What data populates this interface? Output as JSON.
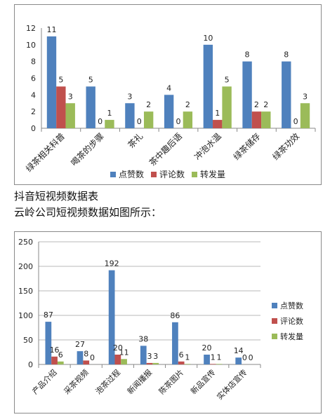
{
  "captions": {
    "line1": "抖音短视频数据表",
    "line2": "云岭公司短视频数据如图所示："
  },
  "colors": {
    "series1": "#4f81bd",
    "series2": "#c0504d",
    "series3": "#9bbb59",
    "axis": "#888888",
    "text": "#222222"
  },
  "chart_data": [
    {
      "type": "bar",
      "title": "",
      "xlabel": "",
      "ylabel": "",
      "ylim": [
        0,
        12
      ],
      "yticks": [
        0,
        2,
        4,
        6,
        8,
        10,
        12
      ],
      "grid": false,
      "legend_position": "bottom",
      "categories": [
        "绿茶相关科普",
        "喝茶的步骤",
        "茶礼",
        "茶中趣后语",
        "冲泡水温",
        "绿茶储存",
        "绿茶功效"
      ],
      "series": [
        {
          "name": "点赞数",
          "values": [
            11,
            5,
            3,
            4,
            10,
            8,
            8
          ]
        },
        {
          "name": "评论数",
          "values": [
            5,
            0,
            0,
            0,
            1,
            2,
            0
          ]
        },
        {
          "name": "转发量",
          "values": [
            3,
            1,
            2,
            2,
            5,
            2,
            3
          ]
        }
      ]
    },
    {
      "type": "bar",
      "title": "",
      "xlabel": "",
      "ylabel": "",
      "ylim": [
        0,
        250
      ],
      "yticks": [
        0,
        50,
        100,
        150,
        200,
        250
      ],
      "grid": true,
      "legend_position": "right",
      "categories": [
        "产品介绍",
        "采茶视频",
        "泡茶过程",
        "新闻播报",
        "陈茶图片",
        "新品宣传",
        "实体店宣传"
      ],
      "series": [
        {
          "name": "点赞数",
          "values": [
            87,
            27,
            192,
            38,
            86,
            20,
            14
          ]
        },
        {
          "name": "评论数",
          "values": [
            16,
            8,
            20,
            3,
            6,
            1,
            0
          ]
        },
        {
          "name": "转发量",
          "values": [
            6,
            0,
            11,
            3,
            1,
            1,
            0
          ]
        }
      ]
    }
  ]
}
